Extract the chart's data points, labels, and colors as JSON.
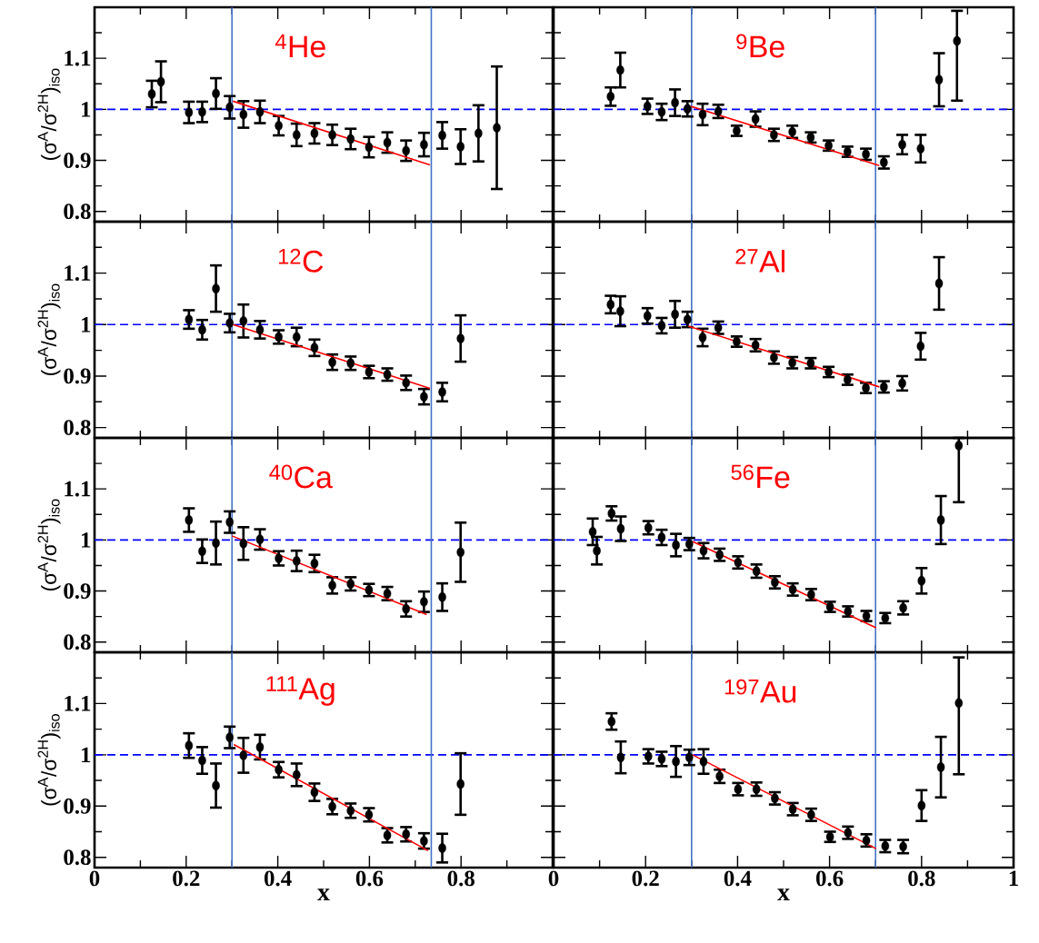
{
  "chart_data": [
    {
      "type": "scatter",
      "ylabel": "(σ$^{A}$/σ$^{2H}$)$_{iso}$",
      "annotations": [
        "$^{4}$He"
      ],
      "tick_labels": "y",
      "xlim": [
        0,
        1
      ],
      "ylim": [
        0.78,
        1.2
      ],
      "xticks": [
        0,
        {
          "value": 0.1,
          "label": null
        },
        0.2,
        {
          "value": 0.3,
          "label": null
        },
        0.4,
        {
          "value": 0.5,
          "label": null
        },
        0.6,
        {
          "value": 0.7,
          "label": null
        },
        0.8,
        {
          "value": 0.9,
          "label": null
        },
        {
          "value": 1,
          "label": null
        }
      ],
      "yticks": [
        0.8,
        {
          "value": 0.85,
          "label": null
        },
        0.9,
        {
          "value": 0.95,
          "label": null
        },
        1,
        {
          "value": 1.05,
          "label": null
        },
        1.1,
        {
          "value": 1.15,
          "label": null
        }
      ],
      "ref_lines": [
        {
          "axis": "y",
          "value": 1,
          "color": "#0000ff",
          "line_style": "dashed"
        },
        {
          "axis": "x",
          "value": 0.3,
          "color": "#4472c4"
        },
        {
          "axis": "x",
          "value": 0.735,
          "color": "#4472c4"
        }
      ],
      "series": [
        {
          "marker": "circle",
          "color": "#000000",
          "x": [
            0.125,
            0.145,
            0.206,
            0.235,
            0.265,
            0.295,
            0.325,
            0.361,
            0.402,
            0.441,
            0.48,
            0.519,
            0.559,
            0.599,
            0.639,
            0.68,
            0.719,
            0.759,
            0.799,
            0.838,
            0.878
          ],
          "values": [
            1.03,
            1.054,
            0.994,
            0.995,
            1.031,
            1.004,
            0.99,
            0.995,
            0.968,
            0.95,
            0.953,
            0.95,
            0.942,
            0.926,
            0.935,
            0.919,
            0.931,
            0.949,
            0.927,
            0.953,
            0.964
          ],
          "errors": [
            0.026,
            0.04,
            0.021,
            0.02,
            0.03,
            0.022,
            0.026,
            0.022,
            0.019,
            0.022,
            0.02,
            0.02,
            0.02,
            0.02,
            0.02,
            0.02,
            0.023,
            0.026,
            0.034,
            0.055,
            0.12
          ]
        },
        {
          "type": "line",
          "color": "#ff0000",
          "x": [
            0.302,
            0.732
          ],
          "values": [
            1.016,
            0.891
          ]
        }
      ]
    },
    {
      "type": "scatter",
      "annotations": [
        "$^{9}$Be"
      ],
      "tick_labels": false,
      "xlim": [
        0,
        1
      ],
      "ylim": [
        0.78,
        1.2
      ],
      "xticks": [
        0,
        {
          "value": 0.1,
          "label": null
        },
        0.2,
        {
          "value": 0.3,
          "label": null
        },
        0.4,
        {
          "value": 0.5,
          "label": null
        },
        0.6,
        {
          "value": 0.7,
          "label": null
        },
        0.8,
        {
          "value": 0.9,
          "label": null
        },
        1
      ],
      "yticks": [
        0.8,
        {
          "value": 0.85,
          "label": null
        },
        0.9,
        {
          "value": 0.95,
          "label": null
        },
        1,
        {
          "value": 1.05,
          "label": null
        },
        1.1,
        {
          "value": 1.15,
          "label": null
        }
      ],
      "ref_lines": [
        {
          "axis": "y",
          "value": 1,
          "color": "#0000ff",
          "line_style": "dashed"
        },
        {
          "axis": "x",
          "value": 0.3,
          "color": "#4472c4"
        },
        {
          "axis": "x",
          "value": 0.7,
          "color": "#4472c4"
        }
      ],
      "series": [
        {
          "marker": "circle",
          "color": "#000000",
          "x": [
            0.124,
            0.145,
            0.204,
            0.235,
            0.264,
            0.291,
            0.324,
            0.358,
            0.398,
            0.439,
            0.479,
            0.519,
            0.559,
            0.598,
            0.639,
            0.679,
            0.718,
            0.758,
            0.798,
            0.838,
            0.877
          ],
          "values": [
            1.025,
            1.077,
            1.006,
            0.995,
            1.013,
            1.001,
            0.99,
            0.996,
            0.958,
            0.981,
            0.95,
            0.956,
            0.945,
            0.929,
            0.917,
            0.912,
            0.896,
            0.931,
            0.923,
            1.058,
            1.134
          ],
          "errors": [
            0.018,
            0.034,
            0.015,
            0.016,
            0.026,
            0.015,
            0.021,
            0.013,
            0.01,
            0.015,
            0.012,
            0.012,
            0.01,
            0.01,
            0.01,
            0.011,
            0.012,
            0.019,
            0.027,
            0.052,
            [
              1.017,
              1.193
            ]
          ]
        },
        {
          "type": "line",
          "color": "#ff0000",
          "x": [
            0.298,
            0.708
          ],
          "values": [
            1.006,
            0.89
          ]
        }
      ]
    },
    {
      "type": "scatter",
      "ylabel": "(σ$^{A}$/σ$^{2H}$)$_{iso}$",
      "annotations": [
        "$^{12}$C"
      ],
      "tick_labels": "y",
      "xlim": [
        0,
        1
      ],
      "ylim": [
        0.78,
        1.2
      ],
      "xticks": [
        0,
        {
          "value": 0.1,
          "label": null
        },
        0.2,
        {
          "value": 0.3,
          "label": null
        },
        0.4,
        {
          "value": 0.5,
          "label": null
        },
        0.6,
        {
          "value": 0.7,
          "label": null
        },
        0.8,
        {
          "value": 0.9,
          "label": null
        },
        {
          "value": 1,
          "label": null
        }
      ],
      "yticks": [
        0.8,
        {
          "value": 0.85,
          "label": null
        },
        0.9,
        {
          "value": 0.95,
          "label": null
        },
        1,
        {
          "value": 1.05,
          "label": null
        },
        1.1,
        {
          "value": 1.15,
          "label": null
        }
      ],
      "ref_lines": [
        {
          "axis": "y",
          "value": 1,
          "color": "#0000ff",
          "line_style": "dashed"
        },
        {
          "axis": "x",
          "value": 0.3,
          "color": "#4472c4"
        },
        {
          "axis": "x",
          "value": 0.735,
          "color": "#4472c4"
        }
      ],
      "series": [
        {
          "marker": "circle",
          "color": "#000000",
          "x": [
            0.206,
            0.235,
            0.265,
            0.295,
            0.325,
            0.361,
            0.402,
            0.441,
            0.48,
            0.519,
            0.559,
            0.599,
            0.639,
            0.68,
            0.719,
            0.759,
            0.799
          ],
          "values": [
            1.01,
            0.99,
            1.07,
            1.003,
            1.007,
            0.99,
            0.976,
            0.976,
            0.955,
            0.927,
            0.925,
            0.908,
            0.903,
            0.887,
            0.86,
            0.869,
            0.973
          ],
          "errors": [
            0.018,
            0.019,
            0.045,
            0.018,
            0.032,
            0.017,
            0.013,
            0.018,
            0.016,
            0.015,
            0.013,
            0.012,
            0.012,
            0.014,
            0.015,
            0.018,
            0.045
          ]
        },
        {
          "type": "line",
          "color": "#ff0000",
          "x": [
            0.302,
            0.732
          ],
          "values": [
            1.0,
            0.876
          ]
        }
      ]
    },
    {
      "type": "scatter",
      "annotations": [
        "$^{27}$Al"
      ],
      "tick_labels": false,
      "xlim": [
        0,
        1
      ],
      "ylim": [
        0.78,
        1.2
      ],
      "xticks": [
        0,
        {
          "value": 0.1,
          "label": null
        },
        0.2,
        {
          "value": 0.3,
          "label": null
        },
        0.4,
        {
          "value": 0.5,
          "label": null
        },
        0.6,
        {
          "value": 0.7,
          "label": null
        },
        0.8,
        {
          "value": 0.9,
          "label": null
        },
        1
      ],
      "yticks": [
        0.8,
        {
          "value": 0.85,
          "label": null
        },
        0.9,
        {
          "value": 0.95,
          "label": null
        },
        1,
        {
          "value": 1.05,
          "label": null
        },
        1.1,
        {
          "value": 1.15,
          "label": null
        }
      ],
      "ref_lines": [
        {
          "axis": "y",
          "value": 1,
          "color": "#0000ff",
          "line_style": "dashed"
        },
        {
          "axis": "x",
          "value": 0.3,
          "color": "#4472c4"
        },
        {
          "axis": "x",
          "value": 0.7,
          "color": "#4472c4"
        }
      ],
      "series": [
        {
          "marker": "circle",
          "color": "#000000",
          "x": [
            0.124,
            0.145,
            0.204,
            0.235,
            0.264,
            0.291,
            0.324,
            0.358,
            0.398,
            0.439,
            0.479,
            0.519,
            0.559,
            0.598,
            0.639,
            0.679,
            0.718,
            0.758,
            0.798,
            0.838
          ],
          "values": [
            1.039,
            1.026,
            1.017,
            0.998,
            1.02,
            1.01,
            0.975,
            0.994,
            0.967,
            0.96,
            0.936,
            0.926,
            0.925,
            0.908,
            0.893,
            0.877,
            0.879,
            0.886,
            0.958,
            1.08
          ],
          "errors": [
            0.017,
            0.029,
            0.015,
            0.015,
            0.026,
            0.015,
            0.017,
            0.012,
            0.01,
            0.012,
            0.012,
            0.011,
            0.01,
            0.01,
            0.01,
            0.01,
            0.011,
            0.014,
            0.026,
            0.051
          ]
        },
        {
          "type": "line",
          "color": "#ff0000",
          "x": [
            0.293,
            0.708
          ],
          "values": [
            0.997,
            0.879
          ]
        }
      ]
    },
    {
      "type": "scatter",
      "ylabel": "(σ$^{A}$/σ$^{2H}$)$_{iso}$",
      "annotations": [
        "$^{40}$Ca"
      ],
      "tick_labels": "y",
      "xlim": [
        0,
        1
      ],
      "ylim": [
        0.78,
        1.2
      ],
      "xticks": [
        0,
        {
          "value": 0.1,
          "label": null
        },
        0.2,
        {
          "value": 0.3,
          "label": null
        },
        0.4,
        {
          "value": 0.5,
          "label": null
        },
        0.6,
        {
          "value": 0.7,
          "label": null
        },
        0.8,
        {
          "value": 0.9,
          "label": null
        },
        {
          "value": 1,
          "label": null
        }
      ],
      "yticks": [
        0.8,
        {
          "value": 0.85,
          "label": null
        },
        0.9,
        {
          "value": 0.95,
          "label": null
        },
        1,
        {
          "value": 1.05,
          "label": null
        },
        1.1,
        {
          "value": 1.15,
          "label": null
        }
      ],
      "ref_lines": [
        {
          "axis": "y",
          "value": 1,
          "color": "#0000ff",
          "line_style": "dashed"
        },
        {
          "axis": "x",
          "value": 0.3,
          "color": "#4472c4"
        },
        {
          "axis": "x",
          "value": 0.735,
          "color": "#4472c4"
        }
      ],
      "series": [
        {
          "marker": "circle",
          "color": "#000000",
          "x": [
            0.206,
            0.235,
            0.265,
            0.295,
            0.325,
            0.361,
            0.402,
            0.441,
            0.48,
            0.519,
            0.559,
            0.599,
            0.639,
            0.68,
            0.719,
            0.759,
            0.799
          ],
          "values": [
            1.039,
            0.978,
            0.994,
            1.035,
            0.993,
            1.001,
            0.964,
            0.959,
            0.954,
            0.911,
            0.914,
            0.902,
            0.895,
            0.865,
            0.879,
            0.888,
            0.976
          ],
          "errors": [
            0.023,
            0.023,
            0.042,
            0.021,
            0.032,
            0.02,
            0.014,
            0.02,
            0.017,
            0.016,
            0.013,
            0.012,
            0.013,
            0.015,
            0.02,
            0.027,
            0.058
          ]
        },
        {
          "type": "line",
          "color": "#ff0000",
          "x": [
            0.3,
            0.725
          ],
          "values": [
            1.008,
            0.854
          ]
        }
      ]
    },
    {
      "type": "scatter",
      "annotations": [
        "$^{56}$Fe"
      ],
      "tick_labels": false,
      "xlim": [
        0,
        1
      ],
      "ylim": [
        0.78,
        1.2
      ],
      "xticks": [
        0,
        {
          "value": 0.1,
          "label": null
        },
        0.2,
        {
          "value": 0.3,
          "label": null
        },
        0.4,
        {
          "value": 0.5,
          "label": null
        },
        0.6,
        {
          "value": 0.7,
          "label": null
        },
        0.8,
        {
          "value": 0.9,
          "label": null
        },
        1
      ],
      "yticks": [
        0.8,
        {
          "value": 0.85,
          "label": null
        },
        0.9,
        {
          "value": 0.95,
          "label": null
        },
        1,
        {
          "value": 1.05,
          "label": null
        },
        1.1,
        {
          "value": 1.15,
          "label": null
        }
      ],
      "ref_lines": [
        {
          "axis": "y",
          "value": 1,
          "color": "#0000ff",
          "line_style": "dashed"
        },
        {
          "axis": "x",
          "value": 0.3,
          "color": "#4472c4"
        },
        {
          "axis": "x",
          "value": 0.7,
          "color": "#4472c4"
        }
      ],
      "series": [
        {
          "marker": "circle",
          "color": "#000000",
          "x": [
            0.085,
            0.094,
            0.126,
            0.146,
            0.206,
            0.235,
            0.266,
            0.295,
            0.326,
            0.361,
            0.401,
            0.441,
            0.481,
            0.52,
            0.56,
            0.601,
            0.64,
            0.68,
            0.721,
            0.76,
            0.8,
            0.842,
            0.881
          ],
          "values": [
            1.016,
            0.979,
            1.052,
            1.022,
            1.024,
            1.005,
            0.99,
            0.992,
            0.979,
            0.971,
            0.956,
            0.939,
            0.917,
            0.903,
            0.893,
            0.869,
            0.86,
            0.851,
            0.847,
            0.867,
            0.92,
            1.039,
            1.185
          ],
          "errors": [
            0.026,
            0.027,
            0.014,
            0.024,
            0.013,
            0.015,
            0.022,
            0.012,
            0.015,
            0.012,
            0.012,
            0.013,
            0.012,
            0.012,
            0.011,
            0.01,
            0.01,
            0.01,
            0.01,
            0.013,
            0.025,
            0.047,
            [
              1.074,
              1.2
            ]
          ]
        },
        {
          "type": "line",
          "color": "#ff0000",
          "x": [
            0.302,
            0.701
          ],
          "values": [
            0.997,
            0.828
          ]
        }
      ]
    },
    {
      "type": "scatter",
      "ylabel": "(σ$^{A}$/σ$^{2H}$)$_{iso}$",
      "xlabel": "x",
      "annotations": [
        "$^{111}$Ag"
      ],
      "xlim": [
        0,
        1
      ],
      "ylim": [
        0.78,
        1.2
      ],
      "xticks": [
        0,
        {
          "value": 0.1,
          "label": null
        },
        0.2,
        {
          "value": 0.3,
          "label": null
        },
        0.4,
        {
          "value": 0.5,
          "label": null
        },
        0.6,
        {
          "value": 0.7,
          "label": null
        },
        0.8,
        {
          "value": 0.9,
          "label": null
        },
        {
          "value": 1,
          "label": null
        }
      ],
      "yticks": [
        0.8,
        {
          "value": 0.85,
          "label": null
        },
        0.9,
        {
          "value": 0.95,
          "label": null
        },
        1,
        {
          "value": 1.05,
          "label": null
        },
        1.1,
        {
          "value": 1.15,
          "label": null
        }
      ],
      "ref_lines": [
        {
          "axis": "y",
          "value": 1,
          "color": "#0000ff",
          "line_style": "dashed"
        },
        {
          "axis": "x",
          "value": 0.3,
          "color": "#4472c4"
        },
        {
          "axis": "x",
          "value": 0.735,
          "color": "#4472c4"
        }
      ],
      "series": [
        {
          "marker": "circle",
          "color": "#000000",
          "x": [
            0.206,
            0.235,
            0.265,
            0.295,
            0.325,
            0.361,
            0.402,
            0.441,
            0.48,
            0.519,
            0.559,
            0.599,
            0.639,
            0.68,
            0.719,
            0.759,
            0.799
          ],
          "values": [
            1.018,
            0.989,
            0.94,
            1.034,
            0.999,
            1.015,
            0.971,
            0.961,
            0.927,
            0.899,
            0.891,
            0.883,
            0.843,
            0.845,
            0.832,
            0.818,
            0.943
          ],
          "errors": [
            0.024,
            0.026,
            0.043,
            0.021,
            0.034,
            0.024,
            0.015,
            0.022,
            0.017,
            0.015,
            0.014,
            0.013,
            0.014,
            0.014,
            0.015,
            0.028,
            0.06
          ]
        },
        {
          "type": "line",
          "color": "#ff0000",
          "x": [
            0.304,
            0.728
          ],
          "values": [
            1.02,
            0.813
          ]
        }
      ]
    },
    {
      "type": "scatter",
      "xlabel": "x",
      "annotations": [
        "$^{197}$Au"
      ],
      "tick_labels": "x",
      "xlim": [
        0,
        1
      ],
      "ylim": [
        0.78,
        1.2
      ],
      "xticks": [
        0,
        {
          "value": 0.1,
          "label": null
        },
        0.2,
        {
          "value": 0.3,
          "label": null
        },
        0.4,
        {
          "value": 0.5,
          "label": null
        },
        0.6,
        {
          "value": 0.7,
          "label": null
        },
        0.8,
        {
          "value": 0.9,
          "label": null
        },
        1
      ],
      "yticks": [
        0.8,
        {
          "value": 0.85,
          "label": null
        },
        0.9,
        {
          "value": 0.95,
          "label": null
        },
        1,
        {
          "value": 1.05,
          "label": null
        },
        1.1,
        {
          "value": 1.15,
          "label": null
        }
      ],
      "ref_lines": [
        {
          "axis": "y",
          "value": 1,
          "color": "#0000ff",
          "line_style": "dashed"
        },
        {
          "axis": "x",
          "value": 0.3,
          "color": "#4472c4"
        },
        {
          "axis": "x",
          "value": 0.7,
          "color": "#4472c4"
        }
      ],
      "series": [
        {
          "marker": "circle",
          "color": "#000000",
          "x": [
            0.126,
            0.146,
            0.206,
            0.235,
            0.266,
            0.295,
            0.326,
            0.361,
            0.401,
            0.441,
            0.481,
            0.52,
            0.56,
            0.601,
            0.64,
            0.68,
            0.721,
            0.76,
            0.8,
            0.842,
            0.881
          ],
          "values": [
            1.065,
            0.995,
            0.997,
            0.992,
            0.987,
            0.995,
            0.987,
            0.958,
            0.933,
            0.933,
            0.915,
            0.894,
            0.883,
            0.84,
            0.848,
            0.833,
            0.822,
            0.821,
            0.901,
            0.976,
            1.101
          ],
          "errors": [
            0.016,
            0.031,
            0.014,
            0.014,
            0.03,
            0.015,
            0.024,
            0.013,
            0.012,
            0.013,
            0.012,
            0.012,
            0.012,
            0.01,
            0.012,
            0.012,
            0.012,
            0.013,
            0.03,
            0.059,
            [
              0.962,
              1.19
            ]
          ]
        },
        {
          "type": "line",
          "color": "#ff0000",
          "x": [
            0.302,
            0.701
          ],
          "values": [
            1.0,
            0.817
          ]
        }
      ]
    }
  ]
}
